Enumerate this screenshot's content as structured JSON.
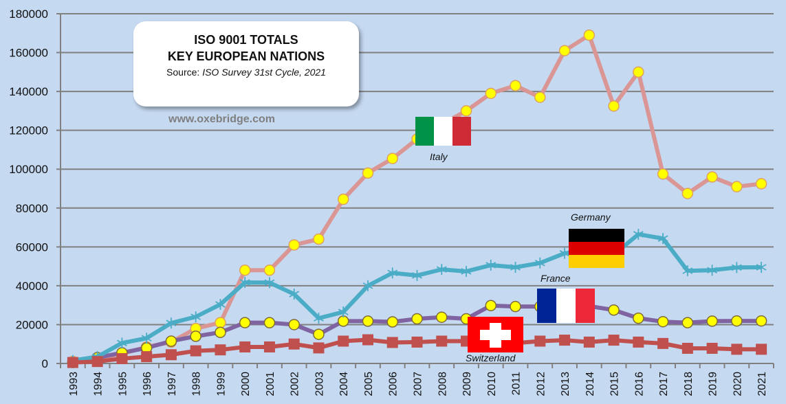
{
  "title_box": {
    "line1": "ISO 9001 TOTALS",
    "line2": "KEY EUROPEAN NATIONS",
    "source_prefix": "Source: ",
    "source_italic": "ISO Survey 31st Cycle, 2021"
  },
  "website": "www.oxebridge.com",
  "flags": {
    "italy": {
      "label": "Italy",
      "colors": [
        "#009246",
        "#ffffff",
        "#ce2b37"
      ]
    },
    "germany": {
      "label": "Germany",
      "colors": [
        "#000000",
        "#dd0000",
        "#ffce00"
      ]
    },
    "france": {
      "label": "France",
      "colors": [
        "#002395",
        "#ffffff",
        "#ed2939"
      ]
    },
    "switzerland": {
      "label": "Switzerland",
      "colors": [
        "#ff0000",
        "#ffffff"
      ]
    }
  },
  "chart_data": {
    "type": "line",
    "title": "ISO 9001 TOTALS - KEY EUROPEAN NATIONS",
    "subtitle": "Source: ISO Survey 31st Cycle, 2021",
    "xlabel": "",
    "ylabel": "",
    "ylim": [
      0,
      180000
    ],
    "yticks": [
      0,
      20000,
      40000,
      60000,
      80000,
      100000,
      120000,
      140000,
      160000,
      180000
    ],
    "grid": true,
    "legend": "inline flag labels",
    "categories": [
      "1993",
      "1994",
      "1995",
      "1996",
      "1997",
      "1998",
      "1999",
      "2000",
      "2001",
      "2002",
      "2003",
      "2004",
      "2005",
      "2006",
      "2007",
      "2008",
      "2009",
      "2010",
      "2011",
      "2012",
      "2013",
      "2014",
      "2015",
      "2016",
      "2017",
      "2018",
      "2019",
      "2020",
      "2021"
    ],
    "series": [
      {
        "name": "Italy",
        "color": "#d99694",
        "marker": "circle",
        "marker_fill": "#ffff00",
        "marker_stroke": "#e0a060",
        "values": [
          1000,
          2500,
          5000,
          8500,
          11000,
          18000,
          21000,
          48000,
          48000,
          61000,
          64000,
          84500,
          98000,
          105500,
          115500,
          123000,
          130000,
          139000,
          143000,
          137000,
          161000,
          169000,
          132500,
          150000,
          97500,
          87500,
          96000,
          91000,
          92500
        ]
      },
      {
        "name": "Germany",
        "color": "#4bacc6",
        "marker": "asterisk",
        "marker_fill": "#4bacc6",
        "marker_stroke": "#4bacc6",
        "values": [
          1500,
          3500,
          10500,
          13000,
          20800,
          24000,
          30400,
          41700,
          41600,
          35700,
          23300,
          26500,
          40000,
          46600,
          45300,
          48400,
          47400,
          50600,
          49500,
          51700,
          56700,
          58000,
          56000,
          66500,
          64300,
          47700,
          48000,
          49400,
          49500
        ]
      },
      {
        "name": "France",
        "color": "#8064a2",
        "marker": "circle",
        "marker_fill": "#ffff00",
        "marker_stroke": "#7f6a3a",
        "values": [
          500,
          3000,
          5500,
          8000,
          11500,
          14000,
          16000,
          21000,
          21000,
          20000,
          15000,
          21800,
          21800,
          21400,
          23000,
          23800,
          23000,
          29800,
          29300,
          29300,
          29500,
          29500,
          27500,
          23300,
          21500,
          21000,
          21800,
          21900,
          21900
        ]
      },
      {
        "name": "Switzerland",
        "color": "#c0504d",
        "marker": "square",
        "marker_fill": "#c0504d",
        "marker_stroke": "#c0504d",
        "values": [
          500,
          1000,
          2500,
          3500,
          4500,
          6500,
          7000,
          8500,
          8500,
          10000,
          8000,
          11500,
          12200,
          10800,
          11000,
          11500,
          11500,
          11000,
          10500,
          11500,
          12000,
          11000,
          12000,
          11000,
          10300,
          7800,
          7800,
          7300,
          7300
        ]
      }
    ]
  }
}
